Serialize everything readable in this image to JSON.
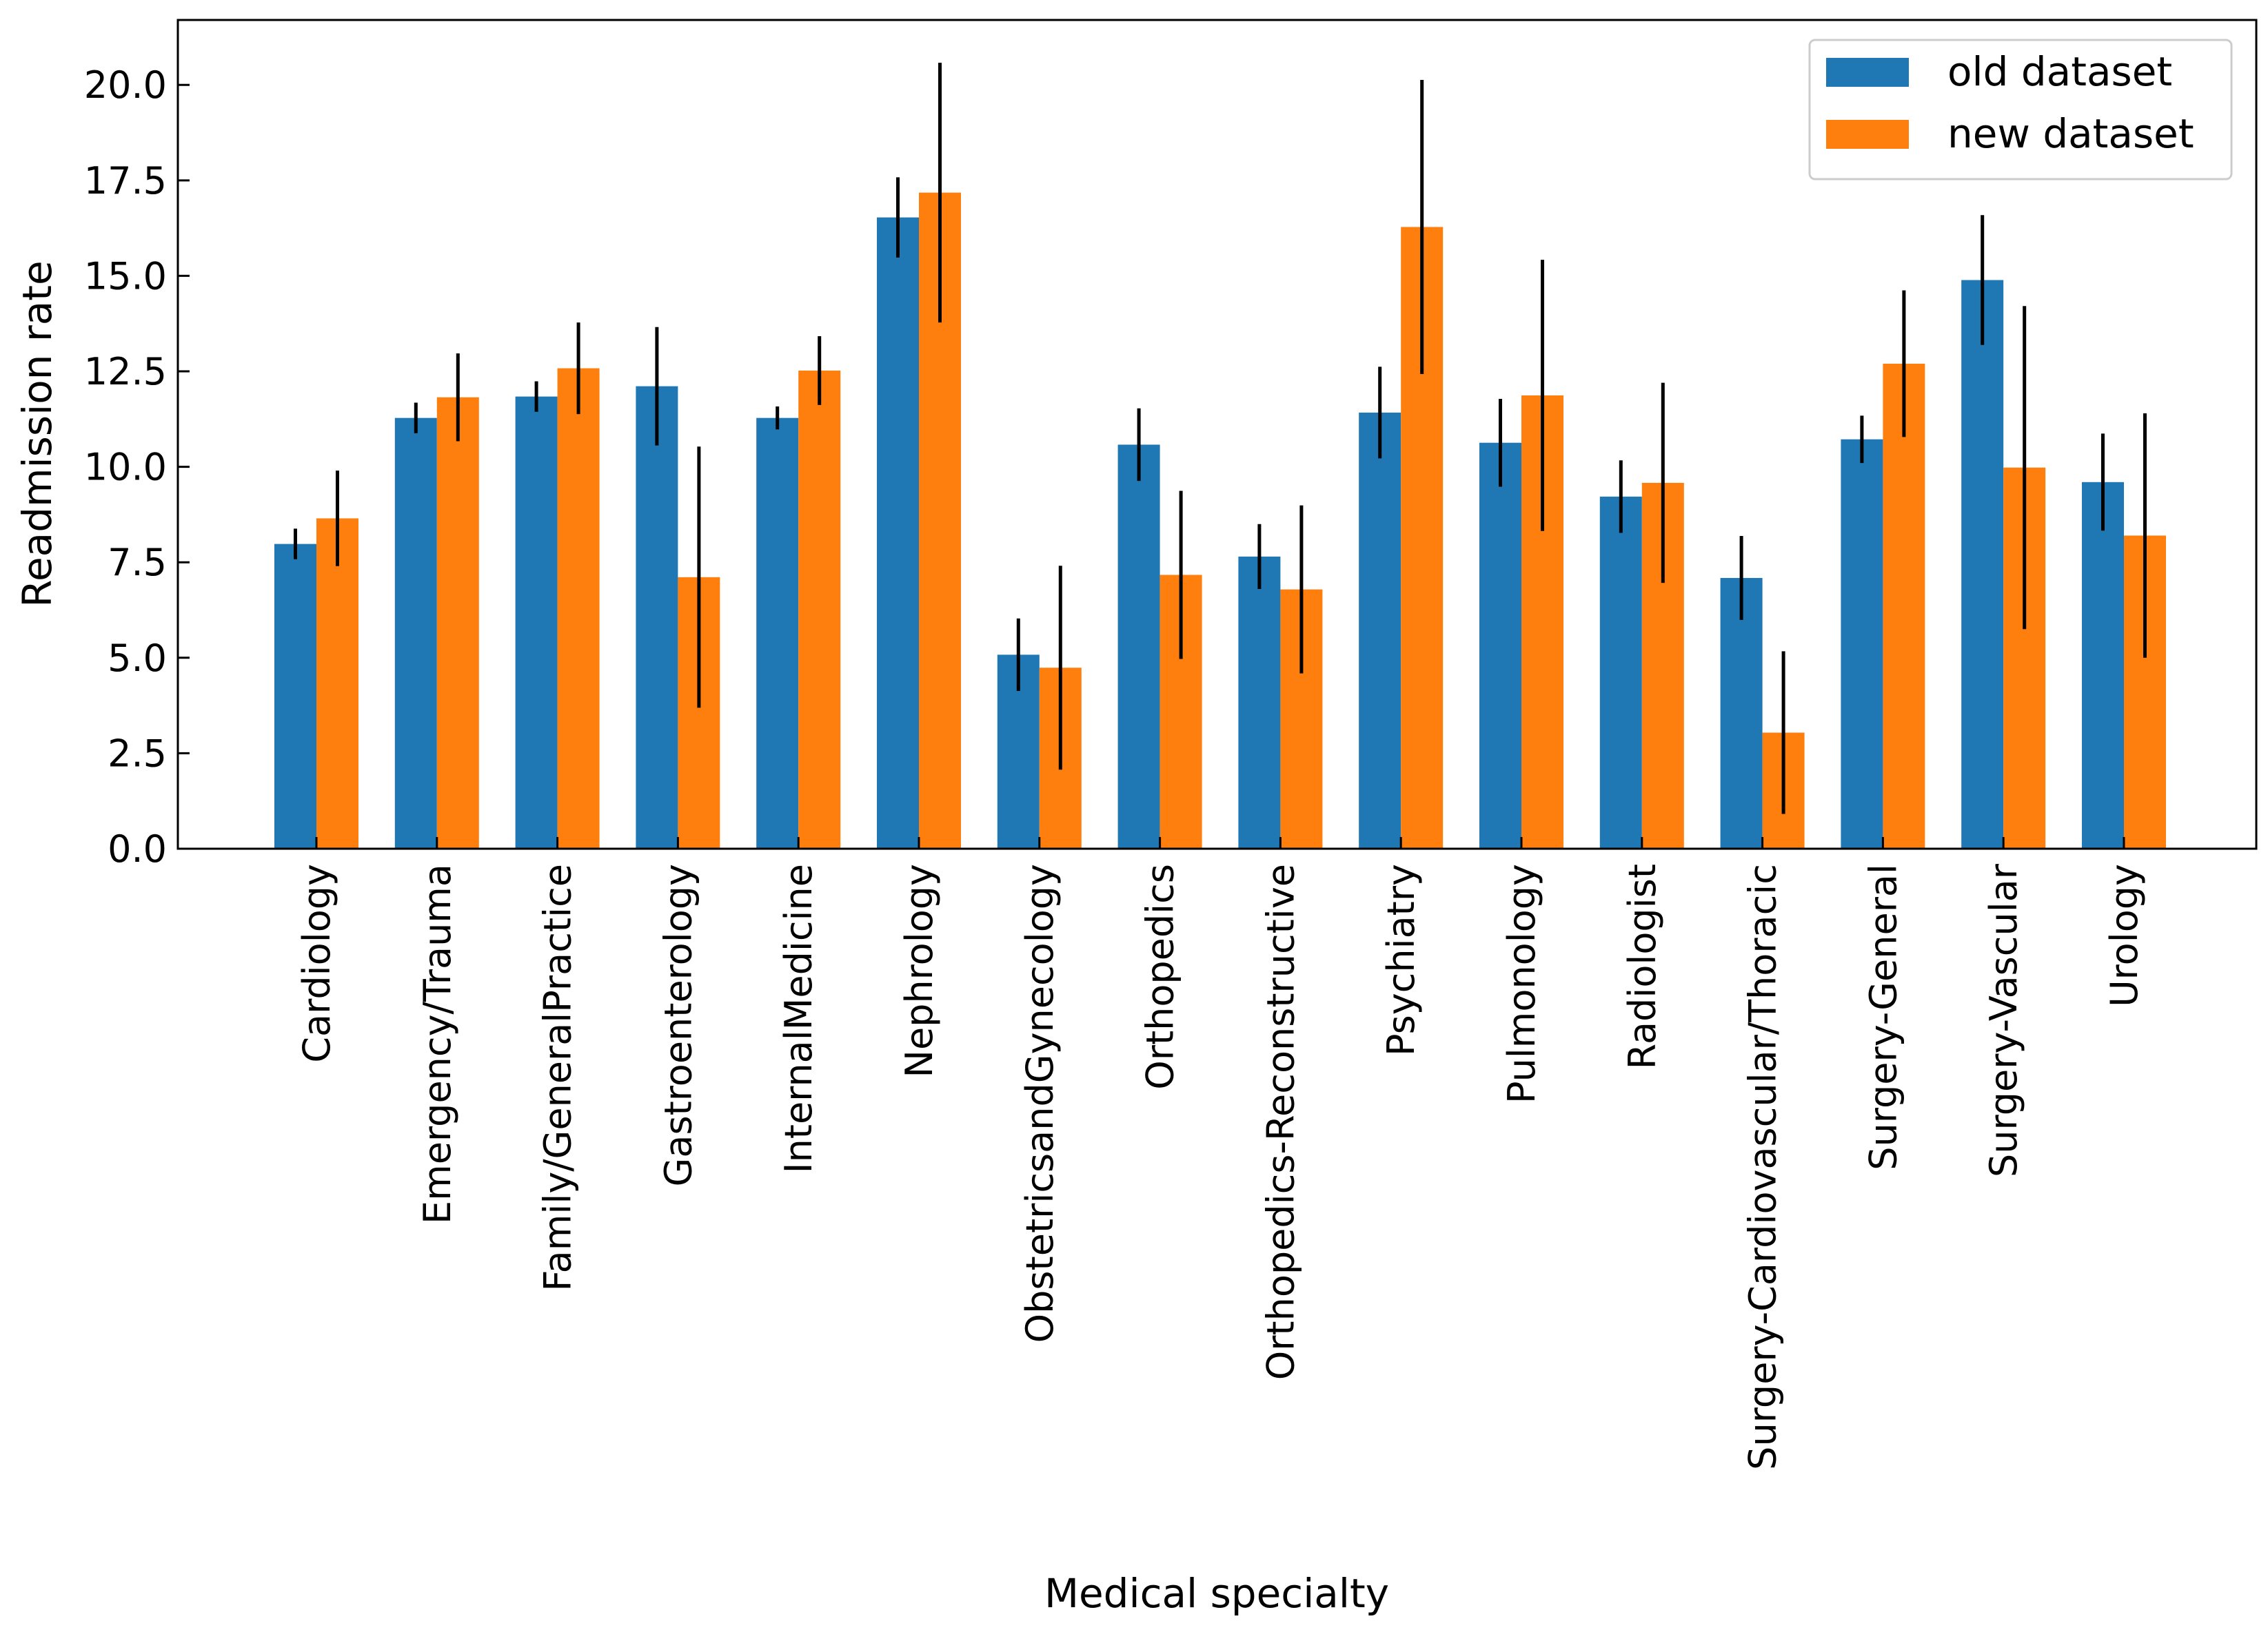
{
  "chart_data": {
    "type": "bar",
    "xlabel": "Medical specialty",
    "ylabel": "Readmission rate",
    "ylim": [
      0,
      21.7
    ],
    "yticks": [
      "0.0",
      "2.5",
      "5.0",
      "7.5",
      "10.0",
      "12.5",
      "15.0",
      "17.5",
      "20.0"
    ],
    "ytick_values": [
      0,
      2.5,
      5,
      7.5,
      10,
      12.5,
      15,
      17.5,
      20
    ],
    "grid": false,
    "legend_position": "top-right",
    "categories": [
      "Cardiology",
      "Emergency/Trauma",
      "Family/GeneralPractice",
      "Gastroenterology",
      "InternalMedicine",
      "Nephrology",
      "ObstetricsandGynecology",
      "Orthopedics",
      "Orthopedics-Reconstructive",
      "Psychiatry",
      "Pulmonology",
      "Radiologist",
      "Surgery-Cardiovascular/Thoracic",
      "Surgery-General",
      "Surgery-Vascular",
      "Urology"
    ],
    "series": [
      {
        "name": "old dataset",
        "color": "#1f77b4",
        "values": [
          7.98,
          11.28,
          11.84,
          12.11,
          11.28,
          16.53,
          5.08,
          10.58,
          7.65,
          11.42,
          10.63,
          9.22,
          7.09,
          10.72,
          14.89,
          9.6
        ],
        "errors": [
          0.4,
          0.4,
          0.4,
          1.55,
          0.3,
          1.05,
          0.95,
          0.95,
          0.85,
          1.2,
          1.15,
          0.95,
          1.1,
          0.62,
          1.7,
          1.27
        ]
      },
      {
        "name": "new dataset",
        "color": "#ff7f0e",
        "values": [
          8.65,
          11.82,
          12.58,
          7.11,
          12.52,
          17.18,
          4.74,
          7.17,
          6.79,
          16.28,
          11.87,
          9.58,
          3.04,
          12.7,
          9.98,
          8.2
        ],
        "errors": [
          1.25,
          1.15,
          1.2,
          3.42,
          0.9,
          3.4,
          2.67,
          2.2,
          2.2,
          3.85,
          3.55,
          2.62,
          2.13,
          1.92,
          4.23,
          3.2
        ]
      }
    ]
  }
}
